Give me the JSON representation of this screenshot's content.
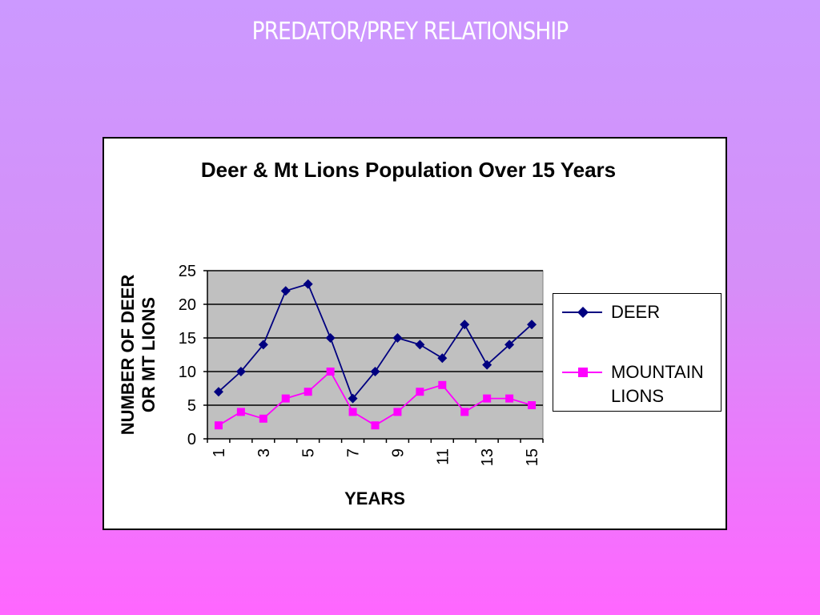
{
  "slide": {
    "title": "PREDATOR/PREY RELATIONSHIP"
  },
  "chart_data": {
    "type": "line",
    "title": "Deer & Mt Lions Population Over 15 Years",
    "xlabel": "YEARS",
    "ylabel": "NUMBER OF DEER OR MT LIONS",
    "x": [
      1,
      2,
      3,
      4,
      5,
      6,
      7,
      8,
      9,
      10,
      11,
      12,
      13,
      14,
      15
    ],
    "x_tick_labels": [
      "1",
      "3",
      "5",
      "7",
      "9",
      "11",
      "13",
      "15"
    ],
    "y_ticks": [
      0,
      5,
      10,
      15,
      20,
      25
    ],
    "ylim": [
      0,
      25
    ],
    "grid": true,
    "plot_background": "#c0c0c0",
    "legend_position": "right",
    "series": [
      {
        "name": "DEER",
        "color": "#000080",
        "marker": "diamond",
        "values": [
          7,
          10,
          14,
          22,
          23,
          15,
          6,
          10,
          15,
          14,
          12,
          17,
          11,
          14,
          17
        ]
      },
      {
        "name": "MOUNTAIN LIONS",
        "color": "#ff00ff",
        "marker": "square",
        "values": [
          2,
          4,
          3,
          6,
          7,
          10,
          4,
          2,
          4,
          7,
          8,
          4,
          6,
          6,
          5
        ]
      }
    ]
  }
}
